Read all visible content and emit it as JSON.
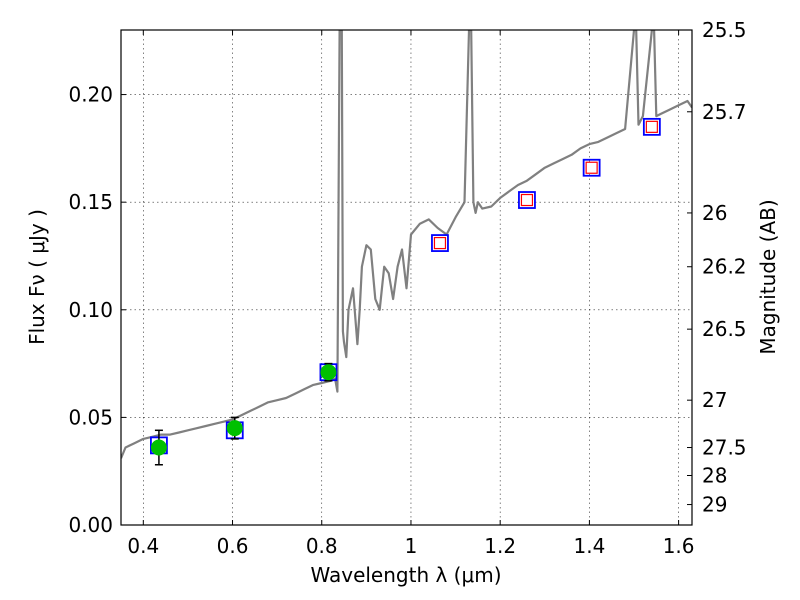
{
  "chart_data": {
    "type": "scatter",
    "xlabel": "Wavelength  λ (μm)",
    "ylabel": "Flux  Fν  ( μJy )",
    "y2label": "Magnitude (AB)",
    "xlim": [
      0.35,
      1.63
    ],
    "ylim": [
      0.0,
      0.23
    ],
    "xticks": [
      0.4,
      0.6,
      0.8,
      1.0,
      1.2,
      1.4,
      1.6
    ],
    "xtick_labels": [
      "0.4",
      "0.6",
      "0.8",
      "1",
      "1.2",
      "1.4",
      "1.6"
    ],
    "yticks": [
      0.0,
      0.05,
      0.1,
      0.15,
      0.2
    ],
    "ytick_labels": [
      "0.00",
      "0.05",
      "0.10",
      "0.15",
      "0.20"
    ],
    "y2ticks": [
      {
        "flux": 0.23,
        "label": "25.5"
      },
      {
        "flux": 0.192,
        "label": "25.7"
      },
      {
        "flux": 0.145,
        "label": "26"
      },
      {
        "flux": 0.12,
        "label": "26.2"
      },
      {
        "flux": 0.091,
        "label": "26.5"
      },
      {
        "flux": 0.058,
        "label": "27"
      },
      {
        "flux": 0.036,
        "label": "27.5"
      },
      {
        "flux": 0.023,
        "label": "28"
      },
      {
        "flux": 0.0095,
        "label": "29"
      }
    ],
    "grid": true,
    "model_spectrum": {
      "color": "#808080",
      "x": [
        0.35,
        0.36,
        0.38,
        0.4,
        0.42,
        0.44,
        0.46,
        0.48,
        0.5,
        0.52,
        0.54,
        0.56,
        0.58,
        0.6,
        0.62,
        0.64,
        0.66,
        0.68,
        0.7,
        0.72,
        0.74,
        0.76,
        0.78,
        0.8,
        0.82,
        0.83,
        0.835,
        0.84,
        0.845,
        0.8475,
        0.85,
        0.855,
        0.86,
        0.87,
        0.88,
        0.885,
        0.89,
        0.9,
        0.91,
        0.92,
        0.93,
        0.94,
        0.95,
        0.96,
        0.97,
        0.98,
        0.99,
        1.0,
        1.02,
        1.04,
        1.06,
        1.08,
        1.1,
        1.12,
        1.13,
        1.135,
        1.14,
        1.145,
        1.15,
        1.16,
        1.18,
        1.2,
        1.22,
        1.24,
        1.26,
        1.28,
        1.3,
        1.32,
        1.34,
        1.36,
        1.38,
        1.4,
        1.42,
        1.44,
        1.46,
        1.48,
        1.5,
        1.505,
        1.51,
        1.52,
        1.54,
        1.545,
        1.55,
        1.56,
        1.58,
        1.6,
        1.62,
        1.63
      ],
      "y": [
        0.031,
        0.036,
        0.038,
        0.04,
        0.041,
        0.042,
        0.042,
        0.043,
        0.044,
        0.045,
        0.046,
        0.047,
        0.048,
        0.049,
        0.051,
        0.053,
        0.055,
        0.057,
        0.058,
        0.059,
        0.061,
        0.063,
        0.065,
        0.066,
        0.067,
        0.068,
        0.062,
        0.23,
        0.23,
        0.09,
        0.085,
        0.078,
        0.1,
        0.11,
        0.084,
        0.1,
        0.12,
        0.13,
        0.128,
        0.105,
        0.1,
        0.12,
        0.117,
        0.105,
        0.12,
        0.128,
        0.11,
        0.135,
        0.14,
        0.142,
        0.138,
        0.135,
        0.143,
        0.15,
        0.23,
        0.23,
        0.15,
        0.145,
        0.15,
        0.147,
        0.148,
        0.152,
        0.155,
        0.158,
        0.16,
        0.163,
        0.166,
        0.168,
        0.17,
        0.172,
        0.175,
        0.177,
        0.178,
        0.18,
        0.182,
        0.184,
        0.23,
        0.23,
        0.186,
        0.19,
        0.23,
        0.23,
        0.19,
        0.191,
        0.193,
        0.195,
        0.197,
        0.194
      ]
    },
    "model_points": {
      "marker": "square",
      "edge_color": "#0000ff",
      "x": [
        0.435,
        0.605,
        0.815,
        1.065,
        1.26,
        1.405,
        1.54
      ],
      "y": [
        0.037,
        0.044,
        0.071,
        0.131,
        0.151,
        0.166,
        0.185
      ]
    },
    "upper_limits": {
      "marker": "square",
      "edge_color": "#ff0000",
      "face_color": "#ffffff",
      "x": [
        1.065,
        1.26,
        1.405,
        1.54
      ],
      "y": [
        0.131,
        0.151,
        0.166,
        0.185
      ]
    },
    "observed": {
      "marker": "circle",
      "color": "#00c000",
      "x": [
        0.435,
        0.605,
        0.815
      ],
      "y": [
        0.036,
        0.045,
        0.071
      ],
      "err": [
        0.008,
        0.005,
        0.004
      ]
    }
  }
}
